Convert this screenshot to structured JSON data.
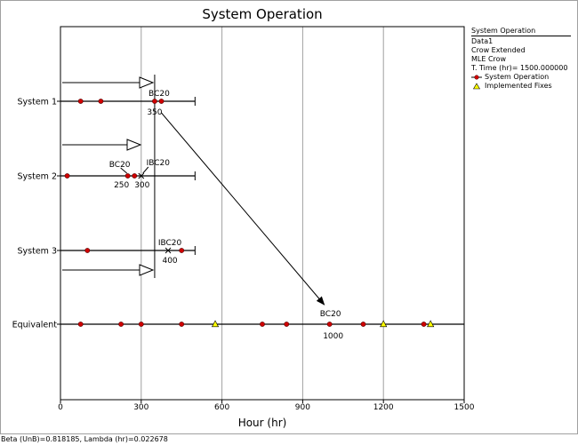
{
  "chart_data": {
    "type": "scatter",
    "title": "System Operation",
    "xlabel": "Hour (hr)",
    "ylabel": "",
    "xlim": [
      0,
      1500
    ],
    "xticks": [
      0,
      300,
      600,
      900,
      1200,
      1500
    ],
    "grid": true,
    "legend_position": "top-right",
    "rows": [
      {
        "label": "System 1",
        "start": 0,
        "end": 500,
        "failures": [
          75,
          150,
          350,
          375
        ],
        "phase_end": 350
      },
      {
        "label": "System 2",
        "start": 0,
        "end": 500,
        "failures": [
          25,
          250,
          275
        ],
        "phase_end": 350
      },
      {
        "label": "System 3",
        "start": 0,
        "end": 500,
        "failures": [
          100,
          450
        ],
        "phase_end": 350
      },
      {
        "label": "Equivalent",
        "start": 0,
        "end": 1500,
        "failures": [
          75,
          225,
          300,
          450,
          750,
          840,
          1000,
          1125,
          1350
        ],
        "fixes": [
          575,
          1200,
          1375
        ]
      }
    ],
    "annotations": [
      {
        "row": 0,
        "x": 350,
        "top": "BC20",
        "bottom": "350",
        "marker": "line"
      },
      {
        "row": 1,
        "x": 250,
        "top": "BC20",
        "bottom": "250",
        "marker": "line"
      },
      {
        "row": 1,
        "x": 300,
        "top": "IBC20",
        "bottom": "300",
        "marker": "x"
      },
      {
        "row": 2,
        "x": 400,
        "top": "IBC20",
        "bottom": "400",
        "marker": "x"
      },
      {
        "row": 3,
        "x": 1000,
        "top": "BC20",
        "bottom": "1000",
        "marker": "none"
      }
    ],
    "legend": {
      "title": "System Operation",
      "lines": [
        "Data1",
        "Crow Extended",
        "MLE Crow",
        "T. Time (hr)= 1500.000000"
      ],
      "series": [
        "System Operation",
        "Implemented Fixes"
      ]
    },
    "colors": {
      "failure": "#d00000",
      "fix": "#ffff00",
      "grid": "#a0a0a0"
    }
  },
  "status_bar": "Beta (UnB)=0.818185, Lambda (hr)=0.022678"
}
